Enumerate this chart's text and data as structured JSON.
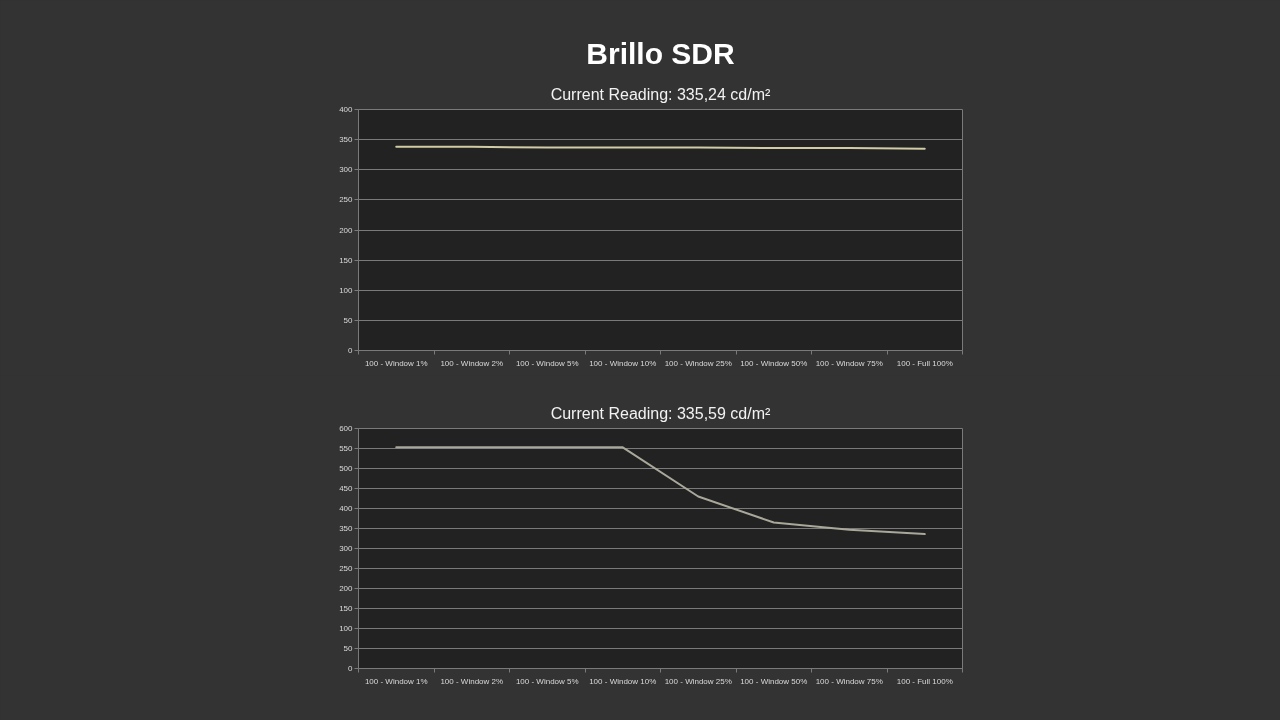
{
  "chart_data": [
    {
      "type": "line",
      "title": "Brillo SDR",
      "subtitle": "Current Reading: 335,24 cd/m²",
      "categories": [
        "100 - Window 1%",
        "100 - Window 2%",
        "100 - Window 5%",
        "100 - Window 10%",
        "100 - Window 25%",
        "100 - Window 50%",
        "100 - Window 75%",
        "100 - Full 100%"
      ],
      "series": [
        {
          "color": "#cfcca6",
          "values": [
            338,
            338,
            337,
            337,
            337,
            336,
            336,
            335
          ]
        }
      ],
      "ylim": [
        0,
        400
      ],
      "yticks": [
        0,
        50,
        100,
        150,
        200,
        250,
        300,
        350,
        400
      ],
      "grid": "y"
    },
    {
      "type": "line",
      "subtitle": "Current Reading: 335,59 cd/m²",
      "categories": [
        "100 - Window 1%",
        "100 - Window 2%",
        "100 - Window 5%",
        "100 - Window 10%",
        "100 - Window 25%",
        "100 - Window 50%",
        "100 - Window 75%",
        "100 - Full 100%"
      ],
      "series": [
        {
          "color": "#a9a89a",
          "values": [
            553,
            553,
            553,
            553,
            430,
            365,
            347,
            336
          ]
        }
      ],
      "ylim": [
        0,
        600
      ],
      "yticks": [
        0,
        50,
        100,
        150,
        200,
        250,
        300,
        350,
        400,
        450,
        500,
        550,
        600
      ],
      "grid": "y"
    }
  ]
}
